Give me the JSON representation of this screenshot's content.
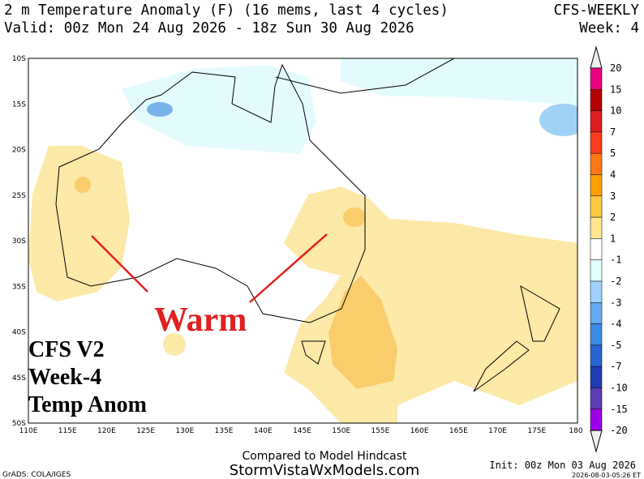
{
  "header": {
    "title": "2 m Temperature Anomaly (F) (16 mems, last 4 cycles)",
    "valid": "Valid: 00z Mon 24 Aug 2026 - 18z Sun 30 Aug 2026",
    "model": "CFS-WEEKLY",
    "week": "Week: 4"
  },
  "map": {
    "lat_labels": [
      "10S",
      "15S",
      "20S",
      "25S",
      "30S",
      "35S",
      "40S",
      "45S",
      "50S"
    ],
    "lon_labels": [
      "110E",
      "115E",
      "120E",
      "125E",
      "130E",
      "135E",
      "140E",
      "145E",
      "150E",
      "155E",
      "160E",
      "165E",
      "170E",
      "175E",
      "180"
    ]
  },
  "colorbar": {
    "labels": [
      20,
      15,
      10,
      7,
      5,
      4,
      3,
      2,
      1,
      -1,
      -2,
      -3,
      -4,
      -5,
      -7,
      -10,
      -15,
      -20
    ]
  },
  "annotations": {
    "warm": "Warm",
    "model": "CFS V2",
    "week": "Week-4",
    "field": "Temp Anom"
  },
  "footer": {
    "compared": "Compared to Model Hindcast",
    "site": "StormVistaWxModels.com",
    "grads": "GrADS: COLA/IGES",
    "init": "Init: 00z Mon 03 Aug 2026",
    "timestamp": "2026-08-03-05:26 ET"
  }
}
